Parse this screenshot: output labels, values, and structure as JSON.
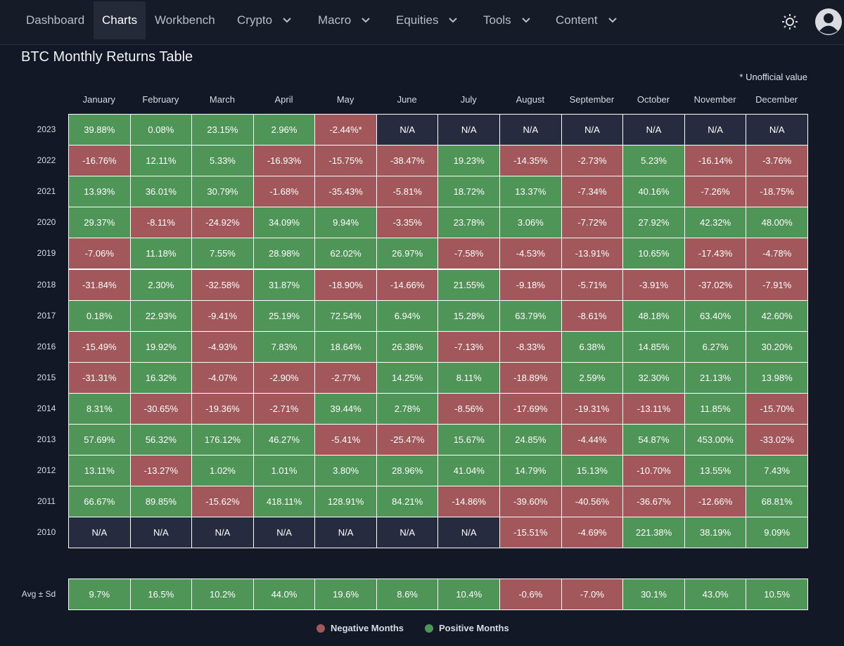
{
  "nav": {
    "items": [
      "Dashboard",
      "Charts",
      "Workbench",
      "Crypto",
      "Macro",
      "Equities",
      "Tools",
      "Content"
    ],
    "active": "Charts"
  },
  "header": {
    "title": "BTC Monthly Returns Table",
    "note": "* Unofficial value"
  },
  "table": {
    "columns": [
      "January",
      "February",
      "March",
      "April",
      "May",
      "June",
      "July",
      "August",
      "September",
      "October",
      "November",
      "December"
    ],
    "rows": [
      {
        "year": "2023",
        "cells": [
          "39.88%",
          "0.08%",
          "23.15%",
          "2.96%",
          "-2.44%*",
          "N/A",
          "N/A",
          "N/A",
          "N/A",
          "N/A",
          "N/A",
          "N/A"
        ]
      },
      {
        "year": "2022",
        "cells": [
          "-16.76%",
          "12.11%",
          "5.33%",
          "-16.93%",
          "-15.75%",
          "-38.47%",
          "19.23%",
          "-14.35%",
          "-2.73%",
          "5.23%",
          "-16.14%",
          "-3.76%"
        ]
      },
      {
        "year": "2021",
        "cells": [
          "13.93%",
          "36.01%",
          "30.79%",
          "-1.68%",
          "-35.43%",
          "-5.81%",
          "18.72%",
          "13.37%",
          "-7.34%",
          "40.16%",
          "-7.26%",
          "-18.75%"
        ]
      },
      {
        "year": "2020",
        "cells": [
          "29.37%",
          "-8.11%",
          "-24.92%",
          "34.09%",
          "9.94%",
          "-3.35%",
          "23.78%",
          "3.06%",
          "-7.72%",
          "27.92%",
          "42.32%",
          "48.00%"
        ]
      },
      {
        "year": "2019",
        "cells": [
          "-7.06%",
          "11.18%",
          "7.55%",
          "28.98%",
          "62.02%",
          "26.97%",
          "-7.58%",
          "-4.53%",
          "-13.91%",
          "10.65%",
          "-17.43%",
          "-4.78%"
        ]
      },
      {
        "year": "2018",
        "cells": [
          "-31.84%",
          "2.30%",
          "-32.58%",
          "31.87%",
          "-18.90%",
          "-14.66%",
          "21.55%",
          "-9.18%",
          "-5.71%",
          "-3.91%",
          "-37.02%",
          "-7.91%"
        ]
      },
      {
        "year": "2017",
        "cells": [
          "0.18%",
          "22.93%",
          "-9.41%",
          "25.19%",
          "72.54%",
          "6.94%",
          "15.28%",
          "63.79%",
          "-8.61%",
          "48.18%",
          "63.40%",
          "42.60%"
        ]
      },
      {
        "year": "2016",
        "cells": [
          "-15.49%",
          "19.92%",
          "-4.93%",
          "7.83%",
          "18.64%",
          "26.38%",
          "-7.13%",
          "-8.33%",
          "6.38%",
          "14.85%",
          "6.27%",
          "30.20%"
        ]
      },
      {
        "year": "2015",
        "cells": [
          "-31.31%",
          "16.32%",
          "-4.07%",
          "-2.90%",
          "-2.77%",
          "14.25%",
          "8.11%",
          "-18.89%",
          "2.59%",
          "32.30%",
          "21.13%",
          "13.98%"
        ]
      },
      {
        "year": "2014",
        "cells": [
          "8.31%",
          "-30.65%",
          "-19.36%",
          "-2.71%",
          "39.44%",
          "2.78%",
          "-8.56%",
          "-17.69%",
          "-19.31%",
          "-13.11%",
          "11.85%",
          "-15.70%"
        ]
      },
      {
        "year": "2013",
        "cells": [
          "57.69%",
          "56.32%",
          "176.12%",
          "46.27%",
          "-5.41%",
          "-25.47%",
          "15.67%",
          "24.85%",
          "-4.44%",
          "54.87%",
          "453.00%",
          "-33.02%"
        ]
      },
      {
        "year": "2012",
        "cells": [
          "13.11%",
          "-13.27%",
          "1.02%",
          "1.01%",
          "3.80%",
          "28.96%",
          "41.04%",
          "14.79%",
          "15.13%",
          "-10.70%",
          "13.55%",
          "7.43%"
        ]
      },
      {
        "year": "2011",
        "cells": [
          "66.67%",
          "89.85%",
          "-15.62%",
          "418.11%",
          "128.91%",
          "84.21%",
          "-14.86%",
          "-39.60%",
          "-40.56%",
          "-36.67%",
          "-12.66%",
          "68.81%"
        ]
      },
      {
        "year": "2010",
        "cells": [
          "N/A",
          "N/A",
          "N/A",
          "N/A",
          "N/A",
          "N/A",
          "N/A",
          "-15.51%",
          "-4.69%",
          "221.38%",
          "38.19%",
          "9.09%"
        ]
      }
    ],
    "avg": {
      "label": "Avg ± Sd",
      "cells": [
        "9.7%",
        "16.5%",
        "10.2%",
        "44.0%",
        "19.6%",
        "8.6%",
        "10.4%",
        "-0.6%",
        "-7.0%",
        "30.1%",
        "43.0%",
        "10.5%"
      ]
    }
  },
  "legend": {
    "items": [
      "Negative Months",
      "Positive Months"
    ]
  }
}
